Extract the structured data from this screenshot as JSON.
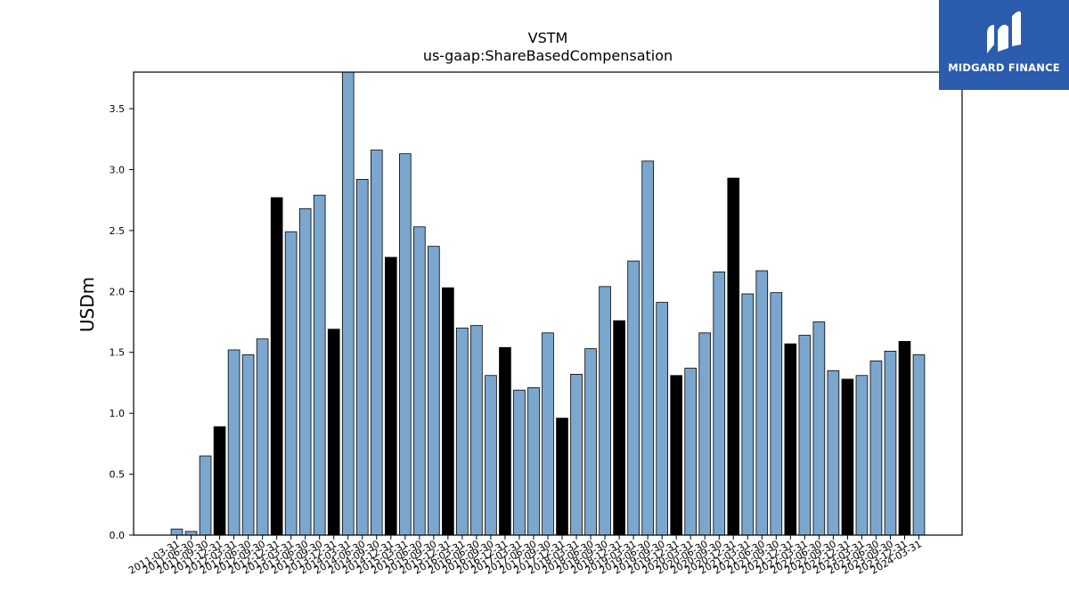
{
  "logo": {
    "text": "MIDGARD FINANCE",
    "background": "#2b5cad"
  },
  "chart_data": {
    "type": "bar",
    "title": "VSTM",
    "subtitle": "us-gaap:ShareBasedCompensation",
    "xlabel": "",
    "ylabel": "USDm",
    "ylim": [
      0,
      3.8
    ],
    "yticks": [
      "0.0",
      "0.5",
      "1.0",
      "1.5",
      "2.0",
      "2.5",
      "3.0",
      "3.5"
    ],
    "grid": false,
    "colors": {
      "quarter": "#7ba7cf",
      "fiscal_year_end": "#000000"
    },
    "categories": [
      "2011-03-31",
      "2011-06-30",
      "2011-09-30",
      "2011-12-31",
      "2012-03-31",
      "2012-06-30",
      "2012-09-30",
      "2012-12-31",
      "2013-03-31",
      "2013-06-30",
      "2013-09-30",
      "2013-12-31",
      "2014-03-31",
      "2014-06-30",
      "2014-09-30",
      "2014-12-31",
      "2015-03-31",
      "2015-06-30",
      "2015-09-30",
      "2015-12-31",
      "2016-03-31",
      "2016-06-30",
      "2016-09-30",
      "2016-12-31",
      "2017-03-31",
      "2017-06-30",
      "2017-09-30",
      "2017-12-31",
      "2018-03-31",
      "2018-06-30",
      "2018-09-30",
      "2018-12-31",
      "2019-03-31",
      "2019-06-30",
      "2019-09-30",
      "2019-12-31",
      "2020-03-31",
      "2020-06-30",
      "2020-09-30",
      "2020-12-31",
      "2021-03-31",
      "2021-06-30",
      "2021-09-30",
      "2021-12-31",
      "2022-03-31",
      "2022-06-30",
      "2022-09-30",
      "2022-12-31",
      "2023-03-31",
      "2023-06-30",
      "2023-09-30",
      "2023-12-31",
      "2024-03-31"
    ],
    "values": [
      0.05,
      0.03,
      0.65,
      0.89,
      1.52,
      1.48,
      1.61,
      2.77,
      2.49,
      2.68,
      2.79,
      1.69,
      3.8,
      2.92,
      3.16,
      2.28,
      3.13,
      2.53,
      2.37,
      2.03,
      1.7,
      1.72,
      1.31,
      1.54,
      1.19,
      1.21,
      1.66,
      0.96,
      1.32,
      1.53,
      2.04,
      1.76,
      2.25,
      3.07,
      1.91,
      1.31,
      1.37,
      1.66,
      2.16,
      2.93,
      1.98,
      2.17,
      1.99,
      1.57,
      1.64,
      1.75,
      1.35,
      1.28,
      1.31,
      1.43,
      1.51,
      1.59,
      1.48
    ],
    "highlight": [
      false,
      false,
      false,
      true,
      false,
      false,
      false,
      true,
      false,
      false,
      false,
      true,
      false,
      false,
      false,
      true,
      false,
      false,
      false,
      true,
      false,
      false,
      false,
      true,
      false,
      false,
      false,
      true,
      false,
      false,
      false,
      true,
      false,
      false,
      false,
      true,
      false,
      false,
      false,
      true,
      false,
      false,
      false,
      true,
      false,
      false,
      false,
      true,
      false,
      false,
      false,
      true,
      false
    ]
  }
}
